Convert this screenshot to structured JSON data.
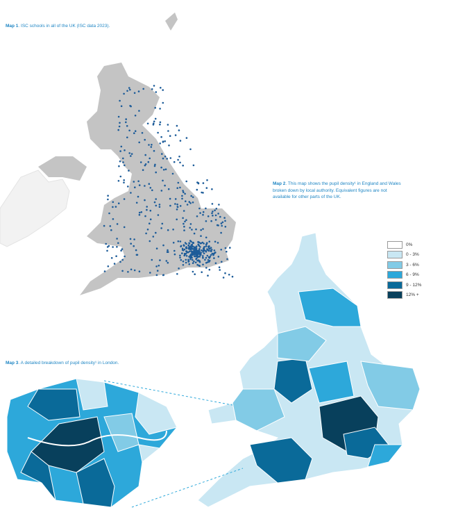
{
  "map1": {
    "label": "Map 1",
    "caption": ". ISC schools in all of the UK (ISC data 2023)."
  },
  "map2": {
    "label": "Map 2",
    "caption": ". This map shows the pupil density¹ in England and Wales broken down by local authority. Equivalent figures are not available for other parts of the UK."
  },
  "map3": {
    "label": "Map 3",
    "caption": ". A detailed breakdown of pupil density¹ in London."
  },
  "legend": {
    "items": [
      {
        "label": "0%",
        "color": "#ffffff"
      },
      {
        "label": "0 - 3%",
        "color": "#c9e7f3"
      },
      {
        "label": "3 - 6%",
        "color": "#82cbe6"
      },
      {
        "label": "6 - 9%",
        "color": "#2da8da"
      },
      {
        "label": "9 - 12%",
        "color": "#0a6a99"
      },
      {
        "label": "12% +",
        "color": "#08405c"
      }
    ]
  }
}
